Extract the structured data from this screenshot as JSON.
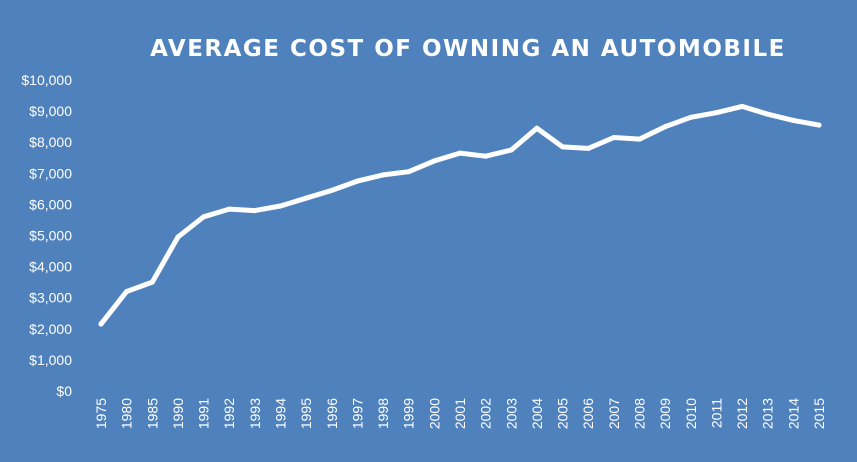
{
  "chart_data": {
    "type": "line",
    "title": "AVERAGE COST OF OWNING AN AUTOMOBILE",
    "xlabel": "",
    "ylabel": "",
    "categories": [
      "1975",
      "1980",
      "1985",
      "1990",
      "1991",
      "1992",
      "1993",
      "1994",
      "1995",
      "1996",
      "1997",
      "1998",
      "1999",
      "2000",
      "2001",
      "2002",
      "2003",
      "2004",
      "2005",
      "2006",
      "2007",
      "2008",
      "2009",
      "2010",
      "2011",
      "2012",
      "2013",
      "2014",
      "2015"
    ],
    "series": [
      {
        "values": [
          2150,
          3200,
          3500,
          4950,
          5600,
          5850,
          5800,
          5950,
          6200,
          6450,
          6750,
          6950,
          7050,
          7400,
          7650,
          7550,
          7750,
          8450,
          7850,
          7800,
          8150,
          8100,
          8500,
          8800,
          8950,
          9150,
          8900,
          8700,
          8550
        ]
      }
    ],
    "ylim": [
      0,
      10000
    ],
    "y_ticks": [
      "$0",
      "$1,000",
      "$2,000",
      "$3,000",
      "$4,000",
      "$5,000",
      "$6,000",
      "$7,000",
      "$8,000",
      "$9,000",
      "$10,000"
    ],
    "line_color": "#ffffff",
    "drop_lines": true,
    "grid": false,
    "legend": "none"
  },
  "colors": {
    "background": "#4f81bd",
    "line": "#ffffff"
  }
}
